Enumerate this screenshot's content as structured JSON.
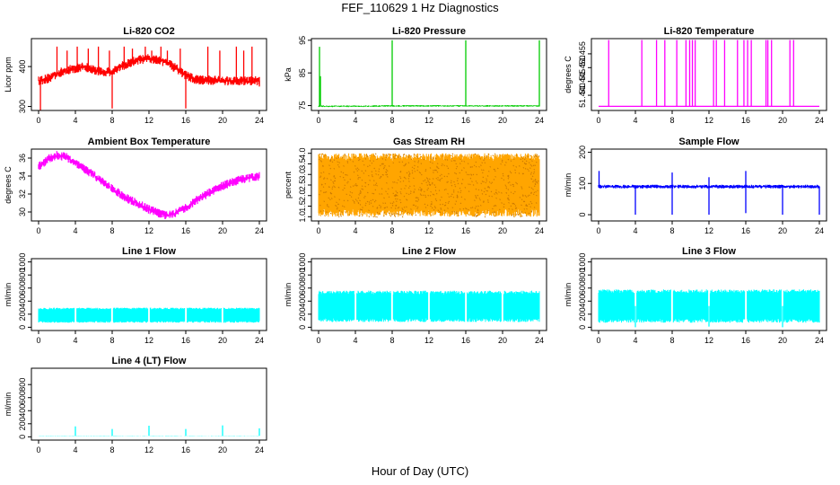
{
  "figure": {
    "title": "FEF_110629  1 Hz Diagnostics",
    "xlabel": "Hour of Day (UTC)"
  },
  "chart_data": [
    {
      "type": "line",
      "title": "Li-820 CO2",
      "ylabel": "Licor ppm",
      "color": "#ff0000",
      "xlim": [
        0,
        24
      ],
      "ylim": [
        290,
        470
      ],
      "x_ticks": [
        0,
        4,
        8,
        12,
        16,
        20,
        24
      ],
      "y_ticks": [
        300,
        400
      ],
      "baseline": [
        [
          0,
          365
        ],
        [
          1,
          370
        ],
        [
          2,
          382
        ],
        [
          3,
          390
        ],
        [
          4,
          395
        ],
        [
          5,
          400
        ],
        [
          6,
          392
        ],
        [
          7,
          385
        ],
        [
          8,
          388
        ],
        [
          9,
          400
        ],
        [
          10,
          410
        ],
        [
          11,
          418
        ],
        [
          12,
          420
        ],
        [
          13,
          418
        ],
        [
          14,
          408
        ],
        [
          15,
          395
        ],
        [
          16,
          378
        ],
        [
          17,
          368
        ],
        [
          18,
          366
        ],
        [
          19,
          366
        ],
        [
          20,
          365
        ],
        [
          21,
          364
        ],
        [
          22,
          364
        ],
        [
          23,
          364
        ],
        [
          24,
          365
        ]
      ],
      "noise": 12,
      "spikes": [
        [
          0.2,
          290
        ],
        [
          2.0,
          450
        ],
        [
          3.1,
          440
        ],
        [
          4.2,
          450
        ],
        [
          5.4,
          445
        ],
        [
          6.5,
          450
        ],
        [
          7.7,
          440
        ],
        [
          8.0,
          295
        ],
        [
          9.3,
          450
        ],
        [
          10.2,
          445
        ],
        [
          11.6,
          450
        ],
        [
          12.3,
          440
        ],
        [
          13.3,
          450
        ],
        [
          14.0,
          440
        ],
        [
          15.4,
          445
        ],
        [
          16.0,
          295
        ],
        [
          18.4,
          450
        ],
        [
          19.7,
          440
        ],
        [
          21.5,
          450
        ],
        [
          22.3,
          440
        ],
        [
          23.2,
          450
        ],
        [
          24.0,
          350
        ]
      ]
    },
    {
      "type": "line",
      "title": "Li-820 Pressure",
      "ylabel": "kPa",
      "color": "#00cc00",
      "xlim": [
        0,
        24
      ],
      "ylim": [
        73.5,
        95.5
      ],
      "x_ticks": [
        0,
        4,
        8,
        12,
        16,
        20,
        24
      ],
      "y_ticks": [
        75,
        85,
        95
      ],
      "baseline": [
        [
          0,
          74.8
        ],
        [
          4,
          74.8
        ],
        [
          8,
          74.9
        ],
        [
          12,
          74.9
        ],
        [
          16,
          74.9
        ],
        [
          20,
          74.9
        ],
        [
          24,
          74.9
        ]
      ],
      "noise": 0.25,
      "spikes": [
        [
          0.1,
          93
        ],
        [
          0.2,
          84
        ],
        [
          8.0,
          95
        ],
        [
          16.0,
          95
        ],
        [
          24.0,
          95
        ]
      ]
    },
    {
      "type": "line",
      "title": "Li-820 Temperature",
      "ylabel": "degrees C",
      "color": "#ff00ff",
      "xlim": [
        0,
        24
      ],
      "ylim": [
        51.4345,
        51.4605
      ],
      "x_ticks": [
        0,
        4,
        8,
        12,
        16,
        20,
        24
      ],
      "y_ticks": [
        51.44,
        51.445,
        51.45,
        51.455
      ],
      "baseline": [
        [
          0,
          51.436
        ],
        [
          24,
          51.436
        ]
      ],
      "noise": 0,
      "spikes": [
        [
          1.1,
          51.46
        ],
        [
          4.7,
          51.46
        ],
        [
          6.3,
          51.46
        ],
        [
          7.2,
          51.46
        ],
        [
          8.5,
          51.46
        ],
        [
          9.5,
          51.46
        ],
        [
          9.9,
          51.46
        ],
        [
          10.2,
          51.46
        ],
        [
          10.5,
          51.46
        ],
        [
          12.5,
          51.46
        ],
        [
          12.8,
          51.46
        ],
        [
          13.7,
          51.46
        ],
        [
          15.1,
          51.46
        ],
        [
          15.8,
          51.46
        ],
        [
          16.2,
          51.46
        ],
        [
          16.6,
          51.46
        ],
        [
          18.2,
          51.46
        ],
        [
          18.4,
          51.46
        ],
        [
          18.8,
          51.46
        ],
        [
          20.8,
          51.46
        ],
        [
          21.2,
          51.46
        ]
      ]
    },
    {
      "type": "line",
      "title": "Ambient Box Temperature",
      "ylabel": "degrees C",
      "color": "#ff00ff",
      "xlim": [
        0,
        24
      ],
      "ylim": [
        29,
        37
      ],
      "x_ticks": [
        0,
        4,
        8,
        12,
        16,
        20,
        24
      ],
      "y_ticks": [
        30,
        32,
        34,
        36
      ],
      "baseline": [
        [
          0,
          35
        ],
        [
          1,
          35.9
        ],
        [
          2,
          36.3
        ],
        [
          3,
          36.1
        ],
        [
          4,
          35.5
        ],
        [
          5,
          34.8
        ],
        [
          6,
          34.1
        ],
        [
          7,
          33.3
        ],
        [
          8,
          32.6
        ],
        [
          9,
          31.9
        ],
        [
          10,
          31.3
        ],
        [
          11,
          30.8
        ],
        [
          12,
          30.3
        ],
        [
          13,
          29.9
        ],
        [
          14,
          29.6
        ],
        [
          15,
          29.9
        ],
        [
          16,
          30.5
        ],
        [
          17,
          31.2
        ],
        [
          18,
          31.8
        ],
        [
          19,
          32.4
        ],
        [
          20,
          32.9
        ],
        [
          21,
          33.3
        ],
        [
          22,
          33.6
        ],
        [
          23,
          33.8
        ],
        [
          24,
          34.0
        ]
      ],
      "noise": 0.5,
      "spikes": []
    },
    {
      "type": "line",
      "title": "Gas Stream RH",
      "ylabel": "percent",
      "color": "#ffa500",
      "xlim": [
        0,
        24
      ],
      "ylim": [
        0.8,
        4.2
      ],
      "x_ticks": [
        0,
        4,
        8,
        12,
        16,
        20,
        24
      ],
      "y_ticks": [
        1.0,
        1.5,
        2.0,
        2.5,
        3.0,
        3.5,
        4.0
      ],
      "band": [
        1.0,
        4.0
      ],
      "spikes": []
    },
    {
      "type": "line",
      "title": "Sample Flow",
      "ylabel": "ml/min",
      "color": "#0000ff",
      "xlim": [
        0,
        24
      ],
      "ylim": [
        -20,
        210
      ],
      "x_ticks": [
        0,
        4,
        8,
        12,
        16,
        20,
        24
      ],
      "y_ticks": [
        0,
        100,
        200
      ],
      "baseline": [
        [
          0,
          90
        ],
        [
          24,
          90
        ]
      ],
      "noise": 6,
      "spikes": [
        [
          0.05,
          140
        ],
        [
          4.0,
          0
        ],
        [
          8.0,
          135
        ],
        [
          8.0,
          0
        ],
        [
          12.0,
          0
        ],
        [
          12.0,
          120
        ],
        [
          16.0,
          140
        ],
        [
          16.0,
          5
        ],
        [
          20.0,
          0
        ],
        [
          24.0,
          0
        ]
      ]
    },
    {
      "type": "line",
      "title": "Line 1 Flow",
      "ylabel": "ml/min",
      "color": "#00ffff",
      "xlim": [
        0,
        24
      ],
      "ylim": [
        -50,
        1050
      ],
      "x_ticks": [
        0,
        4,
        8,
        12,
        16,
        20,
        24
      ],
      "y_ticks": [
        0,
        200,
        400,
        600,
        800,
        1000
      ],
      "band": [
        70,
        300
      ],
      "gaps": [
        4,
        8,
        12,
        16,
        20
      ],
      "spikes": []
    },
    {
      "type": "line",
      "title": "Line 2 Flow",
      "ylabel": "ml/min",
      "color": "#00ffff",
      "xlim": [
        0,
        24
      ],
      "ylim": [
        -50,
        1050
      ],
      "x_ticks": [
        0,
        4,
        8,
        12,
        16,
        20,
        24
      ],
      "y_ticks": [
        0,
        200,
        400,
        600,
        800,
        1000
      ],
      "band": [
        80,
        560
      ],
      "gaps": [
        4,
        8,
        12,
        16,
        20
      ],
      "spikes": []
    },
    {
      "type": "line",
      "title": "Line 3 Flow",
      "ylabel": "ml/min",
      "color": "#00ffff",
      "xlim": [
        0,
        24
      ],
      "ylim": [
        -50,
        1050
      ],
      "x_ticks": [
        0,
        4,
        8,
        12,
        16,
        20,
        24
      ],
      "y_ticks": [
        0,
        200,
        400,
        600,
        800,
        1000
      ],
      "band": [
        70,
        580
      ],
      "gaps": [
        4,
        8,
        12,
        16,
        20
      ],
      "spikes": [
        [
          4.0,
          0
        ],
        [
          12.0,
          10
        ],
        [
          20.0,
          0
        ]
      ]
    },
    {
      "type": "line",
      "title": "Line 4 (LT) Flow",
      "ylabel": "ml/min",
      "color": "#00ffff",
      "xlim": [
        0,
        24
      ],
      "ylim": [
        -50,
        1050
      ],
      "x_ticks": [
        0,
        4,
        8,
        12,
        16,
        20,
        24
      ],
      "y_ticks": [
        0,
        200,
        400,
        600,
        800
      ],
      "baseline": [
        [
          0,
          15
        ],
        [
          24,
          15
        ]
      ],
      "noise": 3,
      "spikes": [
        [
          4.0,
          160
        ],
        [
          8.0,
          120
        ],
        [
          12.0,
          170
        ],
        [
          16.0,
          120
        ],
        [
          20.0,
          175
        ],
        [
          24.0,
          130
        ]
      ]
    }
  ]
}
